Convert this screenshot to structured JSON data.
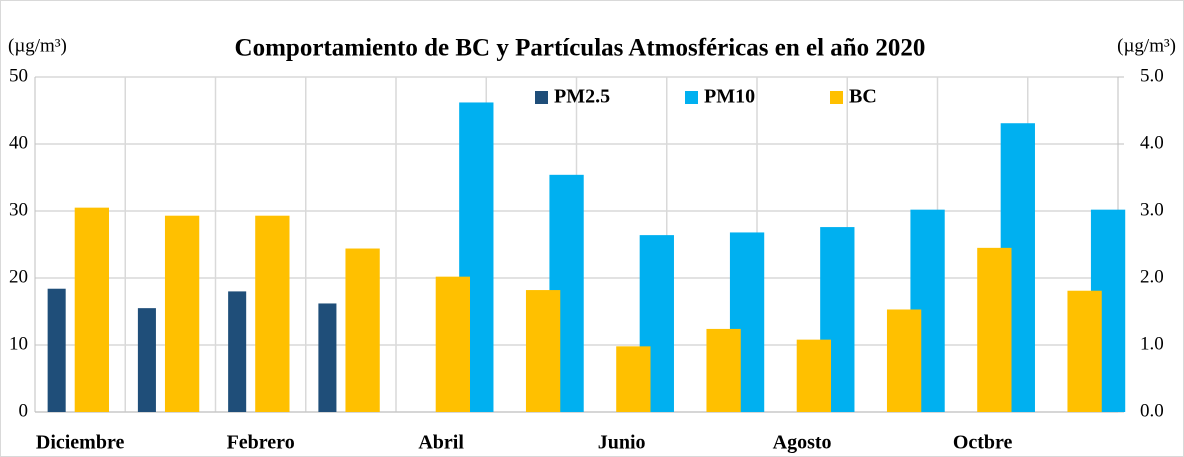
{
  "chart_data": {
    "type": "bar",
    "title": "Comportamiento de BC y Partículas Atmosféricas en el año 2020",
    "ylabel": "(µg/m³)",
    "y2label": "(µg/m³)",
    "categories": [
      "Diciembre",
      null,
      "Febrero",
      null,
      "Abril",
      null,
      "Junio",
      null,
      "Agosto",
      null,
      "Octbre",
      null
    ],
    "series": [
      {
        "name": "PM2.5",
        "color": "#1f4e79",
        "values": [
          18.4,
          15.5,
          18.0,
          16.2,
          null,
          null,
          null,
          null,
          null,
          null,
          null,
          null
        ]
      },
      {
        "name": "PM10",
        "color": "#00b0f0",
        "values": [
          null,
          null,
          null,
          null,
          46.2,
          35.4,
          26.4,
          26.8,
          27.6,
          30.2,
          43.1,
          30.2
        ]
      },
      {
        "name": "BC",
        "color": "#ffc000",
        "axis": "y2",
        "values": [
          3.05,
          2.93,
          2.93,
          2.44,
          2.02,
          1.82,
          0.98,
          1.24,
          1.08,
          1.53,
          2.45,
          1.81
        ]
      }
    ],
    "ylim": [
      0,
      50
    ],
    "yticks": [
      0,
      10,
      20,
      30,
      40,
      50
    ],
    "y2lim": [
      0,
      5
    ],
    "y2ticks": [
      {
        "value": 0,
        "label": "0.0"
      },
      {
        "value": 1,
        "label": "1.0"
      },
      {
        "value": 2,
        "label": "2.0"
      },
      {
        "value": 3,
        "label": "3.0"
      },
      {
        "value": 4,
        "label": "4.0"
      },
      {
        "value": 5,
        "label": "5.0"
      }
    ],
    "grid": true,
    "legend": "top"
  }
}
